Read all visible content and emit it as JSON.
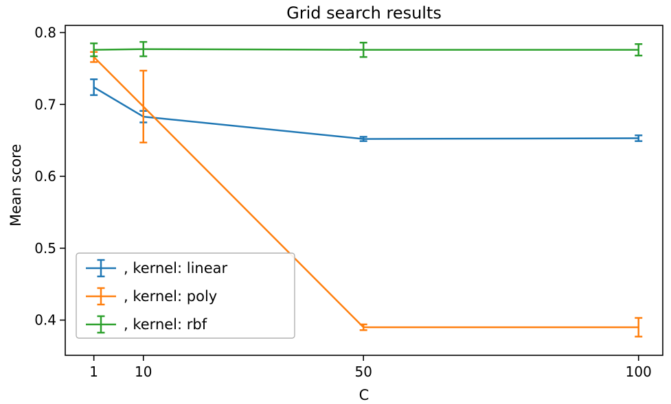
{
  "chart_data": {
    "type": "line",
    "title": "Grid search results",
    "xlabel": "C",
    "ylabel": "Mean score",
    "x": [
      1,
      10,
      50,
      100
    ],
    "xlim": [
      -4.2,
      104.4
    ],
    "ylim": [
      0.351,
      0.81
    ],
    "xticks": [
      1,
      10,
      50,
      100
    ],
    "xtick_labels": [
      "1",
      "10",
      "50",
      "100"
    ],
    "yticks": [
      0.4,
      0.5,
      0.6,
      0.7,
      0.8
    ],
    "ytick_labels": [
      "0.4",
      "0.5",
      "0.6",
      "0.7",
      "0.8"
    ],
    "grid": false,
    "error_bars": true,
    "legend": {
      "position": "lower left",
      "border_color": "#b0b0b0",
      "background": "#ffffff"
    },
    "series": [
      {
        "id": "linear",
        "name": ", kernel: linear",
        "color": "#1f77b4",
        "values": [
          0.724,
          0.683,
          0.652,
          0.653
        ],
        "errors": [
          0.011,
          0.008,
          0.003,
          0.004
        ]
      },
      {
        "id": "poly",
        "name": ", kernel: poly",
        "color": "#ff7f0e",
        "values": [
          0.766,
          0.697,
          0.39,
          0.39
        ],
        "errors": [
          0.007,
          0.05,
          0.004,
          0.013
        ]
      },
      {
        "id": "rbf",
        "name": ", kernel: rbf",
        "color": "#2ca02c",
        "values": [
          0.776,
          0.777,
          0.776,
          0.776
        ],
        "errors": [
          0.009,
          0.01,
          0.01,
          0.008
        ]
      }
    ]
  }
}
